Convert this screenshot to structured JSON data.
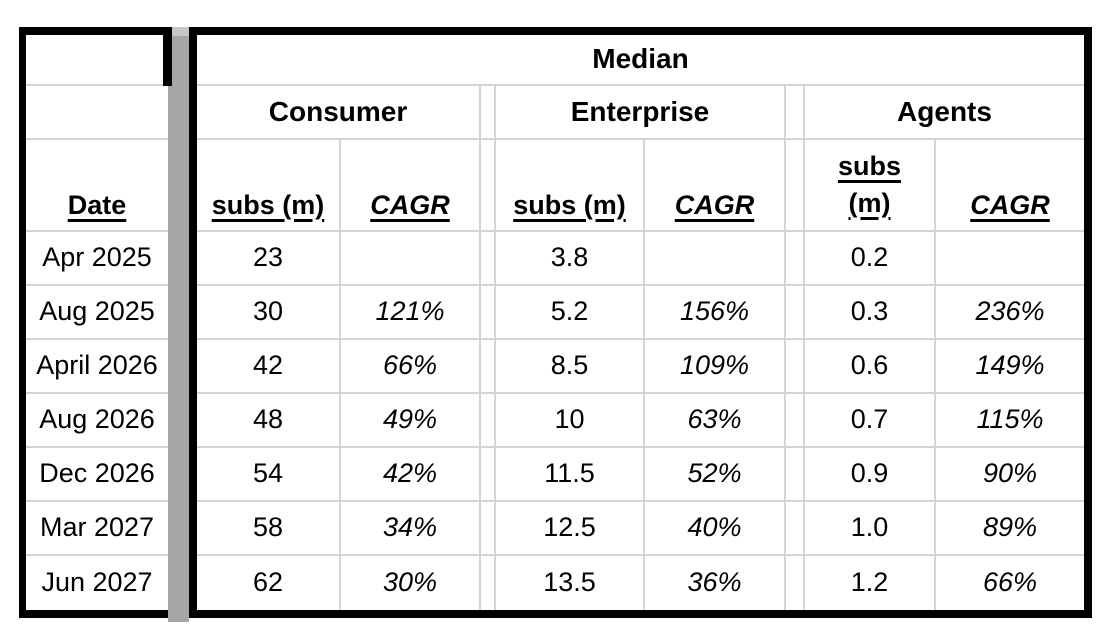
{
  "table": {
    "title": "Median",
    "date_header": "Date",
    "groups": [
      {
        "label": "Consumer",
        "subs_header": "subs (m)",
        "cagr_header": "CAGR"
      },
      {
        "label": "Enterprise",
        "subs_header": "subs (m)",
        "cagr_header": "CAGR"
      },
      {
        "label": "Agents",
        "subs_header": "subs (m)",
        "cagr_header": "CAGR"
      }
    ],
    "rows": [
      {
        "date": "Apr 2025",
        "consumer_subs": "23",
        "consumer_cagr": "",
        "enterprise_subs": "3.8",
        "enterprise_cagr": "",
        "agents_subs": "0.2",
        "agents_cagr": ""
      },
      {
        "date": "Aug 2025",
        "consumer_subs": "30",
        "consumer_cagr": "121%",
        "enterprise_subs": "5.2",
        "enterprise_cagr": "156%",
        "agents_subs": "0.3",
        "agents_cagr": "236%"
      },
      {
        "date": "April 2026",
        "consumer_subs": "42",
        "consumer_cagr": "66%",
        "enterprise_subs": "8.5",
        "enterprise_cagr": "109%",
        "agents_subs": "0.6",
        "agents_cagr": "149%"
      },
      {
        "date": "Aug 2026",
        "consumer_subs": "48",
        "consumer_cagr": "49%",
        "enterprise_subs": "10",
        "enterprise_cagr": "63%",
        "agents_subs": "0.7",
        "agents_cagr": "115%"
      },
      {
        "date": "Dec 2026",
        "consumer_subs": "54",
        "consumer_cagr": "42%",
        "enterprise_subs": "11.5",
        "enterprise_cagr": "52%",
        "agents_subs": "0.9",
        "agents_cagr": "90%"
      },
      {
        "date": "Mar 2027",
        "consumer_subs": "58",
        "consumer_cagr": "34%",
        "enterprise_subs": "12.5",
        "enterprise_cagr": "40%",
        "agents_subs": "1.0",
        "agents_cagr": "89%"
      },
      {
        "date": "Jun 2027",
        "consumer_subs": "62",
        "consumer_cagr": "30%",
        "enterprise_subs": "13.5",
        "enterprise_cagr": "36%",
        "agents_subs": "1.2",
        "agents_cagr": "66%"
      }
    ],
    "colors": {
      "border": "#000000",
      "grid_line": "#d4d4d4",
      "hidden_column": "#a6a6a6",
      "hidden_column_cap": "#c6c6c6",
      "text": "#000000",
      "background": "#ffffff"
    }
  }
}
